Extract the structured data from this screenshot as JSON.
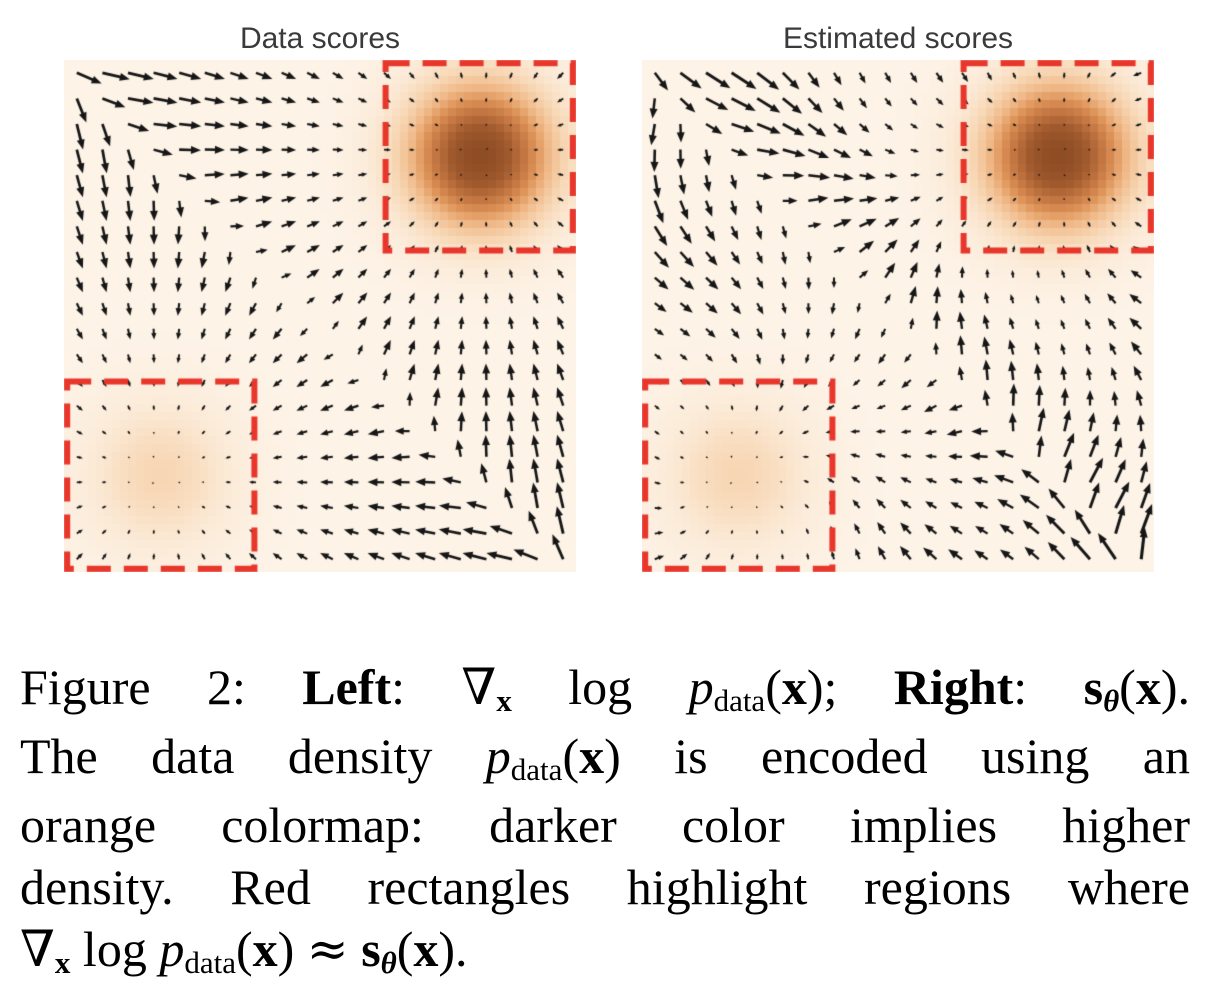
{
  "figure": {
    "label": "Figure 2:",
    "caption": {
      "lines": [
        [
          {
            "t": "Figure 2:  ",
            "s": ""
          },
          {
            "t": "Left",
            "s": "b"
          },
          {
            "t": ":  ",
            "s": ""
          },
          {
            "t": "∇",
            "s": "sym"
          },
          {
            "t": "x",
            "s": "b sub"
          },
          {
            "t": " log ",
            "s": ""
          },
          {
            "t": "p",
            "s": "i"
          },
          {
            "t": "data",
            "s": "sub"
          },
          {
            "t": "(",
            "s": ""
          },
          {
            "t": "x",
            "s": "b"
          },
          {
            "t": "); ",
            "s": ""
          },
          {
            "t": "Right",
            "s": "b"
          },
          {
            "t": ":  ",
            "s": ""
          },
          {
            "t": "s",
            "s": "b"
          },
          {
            "t": "θ",
            "s": "bi sub"
          },
          {
            "t": "(",
            "s": ""
          },
          {
            "t": "x",
            "s": "b"
          },
          {
            "t": ").",
            "s": ""
          }
        ],
        [
          {
            "t": "The data density ",
            "s": ""
          },
          {
            "t": "p",
            "s": "i"
          },
          {
            "t": "data",
            "s": "sub"
          },
          {
            "t": "(",
            "s": ""
          },
          {
            "t": "x",
            "s": "b"
          },
          {
            "t": ") is encoded using an",
            "s": ""
          }
        ],
        [
          {
            "t": "orange colormap:  darker color implies higher",
            "s": ""
          }
        ],
        [
          {
            "t": "density.  Red rectangles highlight regions where",
            "s": ""
          }
        ],
        [
          {
            "t": "∇",
            "s": "sym"
          },
          {
            "t": "x",
            "s": "b sub"
          },
          {
            "t": " log ",
            "s": ""
          },
          {
            "t": "p",
            "s": "i"
          },
          {
            "t": "data",
            "s": "sub"
          },
          {
            "t": "(",
            "s": ""
          },
          {
            "t": "x",
            "s": "b"
          },
          {
            "t": ") ",
            "s": ""
          },
          {
            "t": "≈",
            "s": "sym"
          },
          {
            "t": " ",
            "s": ""
          },
          {
            "t": "s",
            "s": "b"
          },
          {
            "t": "θ",
            "s": "bi sub"
          },
          {
            "t": "(",
            "s": ""
          },
          {
            "t": "x",
            "s": "b"
          },
          {
            "t": ").",
            "s": ""
          }
        ]
      ]
    }
  },
  "colors": {
    "background": "#ffffff",
    "title_text": "#3a3a3a",
    "caption_text": "#000000"
  },
  "chart_data": {
    "type": "quiver",
    "panels": [
      {
        "title": "Data scores",
        "estimated": false
      },
      {
        "title": "Estimated scores",
        "estimated": true
      }
    ],
    "domain": {
      "x": [
        -8,
        8
      ],
      "y": [
        -8,
        8
      ]
    },
    "grid_points": 20,
    "grid_margin": 0.4,
    "gmm": {
      "weights": [
        0.8,
        0.2
      ],
      "means": [
        [
          5,
          5
        ],
        [
          -5,
          -5
        ]
      ],
      "sigma": 1.6
    },
    "highlight_rects": [
      {
        "x": [
          2.05,
          7.9
        ],
        "y": [
          2.05,
          7.9
        ]
      },
      {
        "x": [
          -7.9,
          -2.05
        ],
        "y": [
          -7.9,
          -2.05
        ]
      }
    ],
    "heatmap": {
      "cells": 64,
      "peak_levels": [
        1.0,
        0.25
      ],
      "colormap_stops": [
        [
          0.0,
          "#fdf3e7"
        ],
        [
          0.12,
          "#fbe8d3"
        ],
        [
          0.25,
          "#f7d6b3"
        ],
        [
          0.4,
          "#f0b988"
        ],
        [
          0.55,
          "#dd9257"
        ],
        [
          0.7,
          "#c17440"
        ],
        [
          0.85,
          "#a05a2e"
        ],
        [
          1.0,
          "#8e4c24"
        ]
      ]
    },
    "arrow": {
      "color": "#161616",
      "scale": 6.0,
      "max_len": 32,
      "head_len": 10
    },
    "rect_style": {
      "color": "#e8362b",
      "line_width": 6,
      "dash": [
        24,
        13
      ]
    },
    "estimation_noise": {
      "a1": 0.5,
      "a2": 0.18,
      "mag": 0.22
    }
  }
}
